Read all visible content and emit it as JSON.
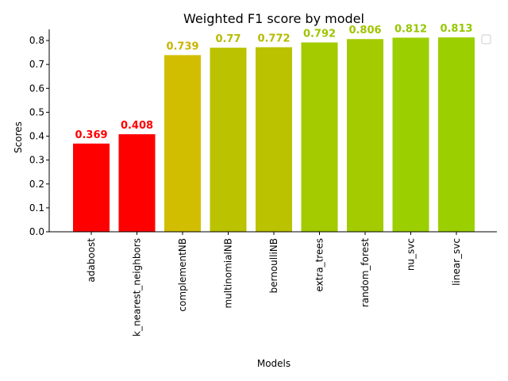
{
  "chart_data": {
    "type": "bar",
    "title": "Weighted F1 score by model",
    "xlabel": "Models",
    "ylabel": "Scores",
    "ylim": [
      0,
      0.84
    ],
    "yticks": [
      "0.0",
      "0.1",
      "0.2",
      "0.3",
      "0.4",
      "0.5",
      "0.6",
      "0.7",
      "0.8"
    ],
    "categories": [
      "adaboost",
      "k_nearest_neighbors",
      "complementNB",
      "multinomialNB",
      "bernoulliNB",
      "extra_trees",
      "random_forest",
      "nu_svc",
      "linear_svc"
    ],
    "values": [
      0.369,
      0.408,
      0.739,
      0.77,
      0.772,
      0.792,
      0.806,
      0.812,
      0.813
    ],
    "value_labels": [
      "0.369",
      "0.408",
      "0.739",
      "0.77",
      "0.772",
      "0.792",
      "0.806",
      "0.812",
      "0.813"
    ],
    "colors": [
      "#ff0000",
      "#ff0000",
      "#d2be00",
      "#bbc200",
      "#bbc200",
      "#a4ca00",
      "#a4ca00",
      "#9ccf00",
      "#9ccf00"
    ],
    "label_colors": [
      "#ff0000",
      "#ff0000",
      "#c8b400",
      "#b4bc00",
      "#b4bc00",
      "#a0c400",
      "#a0c400",
      "#96c800",
      "#96c800"
    ],
    "grid": false,
    "legend": "top-right (empty)"
  }
}
